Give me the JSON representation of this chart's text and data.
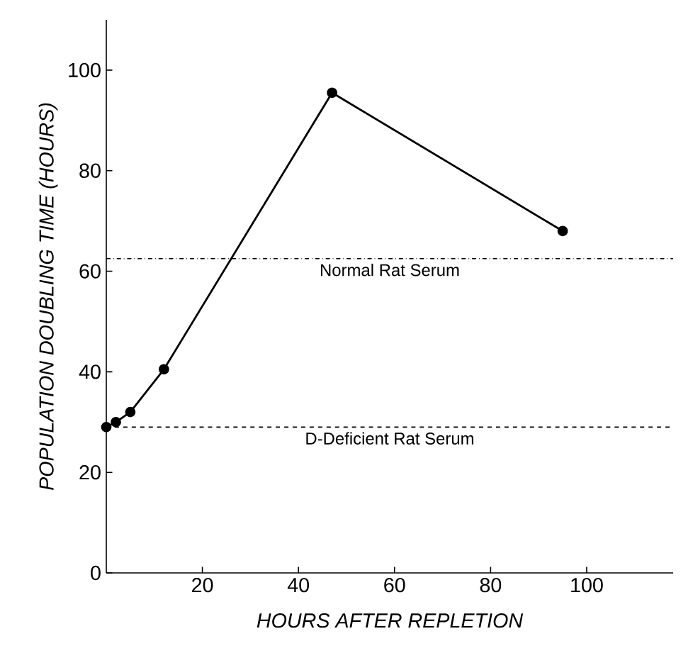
{
  "chart_data": {
    "type": "line",
    "xlabel": "HOURS AFTER REPLETION",
    "ylabel": "POPULATION DOUBLING TIME  (HOURS)",
    "x": [
      0,
      2,
      5,
      12,
      47,
      95
    ],
    "series": [
      {
        "color": "#000000",
        "values": [
          29,
          30,
          32,
          40.5,
          95.5,
          68
        ]
      }
    ],
    "marker": "circle",
    "line_style": "solid",
    "xlim": [
      0,
      118
    ],
    "ylim": [
      0,
      110
    ],
    "xticks": [
      20,
      40,
      60,
      80,
      100
    ],
    "yticks": [
      0,
      20,
      40,
      60,
      80,
      100
    ],
    "ref_lines": [
      {
        "axis": "y",
        "value": 62.5,
        "label": "Normal Rat Serum",
        "line_style": "dashdot"
      },
      {
        "axis": "y",
        "value": 29,
        "label": "D-Deficient Rat Serum",
        "line_style": "dashed"
      }
    ]
  }
}
